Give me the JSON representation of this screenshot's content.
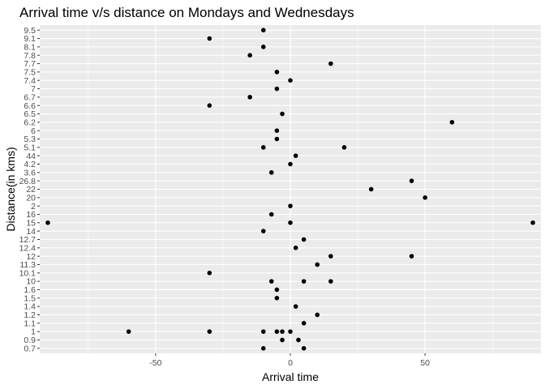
{
  "chart_data": {
    "type": "scatter",
    "title": "Arrival time v/s distance on Mondays and Wednesdays",
    "xlabel": "Arrival time",
    "ylabel": "Distance(in kms)",
    "x_ticks": [
      -50,
      0,
      50
    ],
    "x_tick_labels": [
      "-50",
      "0",
      "50"
    ],
    "xlim": [
      -93,
      93
    ],
    "y_categories": [
      "0.7",
      "0.9",
      "1",
      "1.1",
      "1.2",
      "1.4",
      "1.5",
      "1.6",
      "10",
      "10.1",
      "11.3",
      "12",
      "12.4",
      "12.7",
      "14",
      "15",
      "16",
      "2",
      "20",
      "22",
      "26.8",
      "3.6",
      "4.2",
      "44",
      "5.1",
      "5.3",
      "6",
      "6.2",
      "6.5",
      "6.6",
      "6.7",
      "7",
      "7.4",
      "7.5",
      "7.7",
      "7.8",
      "8.1",
      "9.1",
      "9.5"
    ],
    "points": [
      {
        "x": -10,
        "y": "9.5"
      },
      {
        "x": -30,
        "y": "9.1"
      },
      {
        "x": -10,
        "y": "8.1"
      },
      {
        "x": -15,
        "y": "7.8"
      },
      {
        "x": 15,
        "y": "7.7"
      },
      {
        "x": -5,
        "y": "7.5"
      },
      {
        "x": 0,
        "y": "7.4"
      },
      {
        "x": -5,
        "y": "7"
      },
      {
        "x": -15,
        "y": "6.7"
      },
      {
        "x": -30,
        "y": "6.6"
      },
      {
        "x": -3,
        "y": "6.5"
      },
      {
        "x": 60,
        "y": "6.2"
      },
      {
        "x": -5,
        "y": "6"
      },
      {
        "x": -5,
        "y": "5.3"
      },
      {
        "x": -10,
        "y": "5.1"
      },
      {
        "x": 20,
        "y": "5.1"
      },
      {
        "x": 2,
        "y": "44"
      },
      {
        "x": 0,
        "y": "4.2"
      },
      {
        "x": -7,
        "y": "3.6"
      },
      {
        "x": 45,
        "y": "26.8"
      },
      {
        "x": 30,
        "y": "22"
      },
      {
        "x": 50,
        "y": "20"
      },
      {
        "x": 0,
        "y": "2"
      },
      {
        "x": -7,
        "y": "16"
      },
      {
        "x": -90,
        "y": "15"
      },
      {
        "x": 0,
        "y": "15"
      },
      {
        "x": 90,
        "y": "15"
      },
      {
        "x": -10,
        "y": "14"
      },
      {
        "x": 5,
        "y": "12.7"
      },
      {
        "x": 2,
        "y": "12.4"
      },
      {
        "x": 15,
        "y": "12"
      },
      {
        "x": 45,
        "y": "12"
      },
      {
        "x": 10,
        "y": "11.3"
      },
      {
        "x": -30,
        "y": "10.1"
      },
      {
        "x": -7,
        "y": "10"
      },
      {
        "x": 5,
        "y": "10"
      },
      {
        "x": 15,
        "y": "10"
      },
      {
        "x": -5,
        "y": "1.6"
      },
      {
        "x": -5,
        "y": "1.5"
      },
      {
        "x": 2,
        "y": "1.4"
      },
      {
        "x": 10,
        "y": "1.2"
      },
      {
        "x": 5,
        "y": "1.1"
      },
      {
        "x": -60,
        "y": "1"
      },
      {
        "x": -30,
        "y": "1"
      },
      {
        "x": -10,
        "y": "1"
      },
      {
        "x": -5,
        "y": "1"
      },
      {
        "x": -3,
        "y": "1"
      },
      {
        "x": 0,
        "y": "1"
      },
      {
        "x": -3,
        "y": "0.9"
      },
      {
        "x": 3,
        "y": "0.9"
      },
      {
        "x": -10,
        "y": "0.7"
      },
      {
        "x": 5,
        "y": "0.7"
      }
    ],
    "grid": true,
    "legend": "none",
    "colors": {
      "panel_background": "#ebebeb",
      "major_grid": "#ffffff",
      "point": "#000000",
      "tick_label": "#4d4d4d",
      "tick": "#333333"
    }
  }
}
